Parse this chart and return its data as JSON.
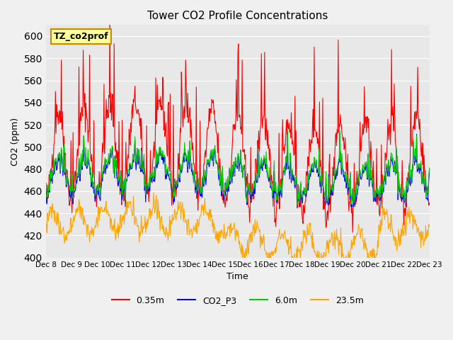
{
  "title": "Tower CO2 Profile Concentrations",
  "xlabel": "Time",
  "ylabel": "CO2 (ppm)",
  "ylim": [
    400,
    610
  ],
  "yticks": [
    400,
    420,
    440,
    460,
    480,
    500,
    520,
    540,
    560,
    580,
    600
  ],
  "background_color": "#e8e8e8",
  "plot_bg_color": "#e8e8e8",
  "series": [
    {
      "label": "0.35m",
      "color": "#ff0000"
    },
    {
      "label": "CO2_P3",
      "color": "#0000ff"
    },
    {
      "label": "6.0m",
      "color": "#00cc00"
    },
    {
      "label": "23.5m",
      "color": "#ffa500"
    }
  ],
  "annotation_text": "TZ_co2prof",
  "annotation_bg": "#ffff99",
  "annotation_border": "#cc8800",
  "n_days": 15,
  "x_tick_labels": [
    "Dec 8",
    "Dec 9",
    "Dec 10",
    "Dec 11",
    "Dec 12",
    "Dec 13",
    "Dec 14",
    "Dec 15",
    "Dec 16",
    "Dec 17",
    "Dec 18",
    "Dec 19",
    "Dec 20",
    "Dec 21",
    "Dec 22",
    "Dec 23"
  ],
  "seed": 42
}
